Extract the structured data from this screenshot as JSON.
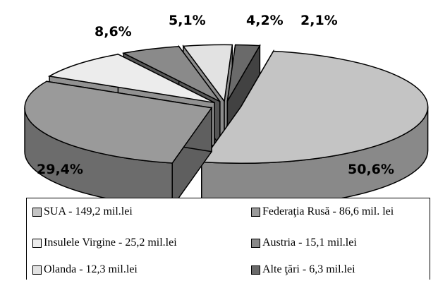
{
  "chart_data": {
    "type": "pie",
    "title": "",
    "slices": [
      {
        "label": "SUA - 149,2 mil.lei",
        "value": 50.6,
        "value_label": "50,6%",
        "color": "#c4c4c4"
      },
      {
        "label": "Federaţia Rusă - 86,6 mil. lei",
        "value": 29.4,
        "value_label": "29,4%",
        "color": "#9a9a9a"
      },
      {
        "label": "Insulele Virgine - 25,2 mil.lei",
        "value": 8.6,
        "value_label": "8,6%",
        "color": "#ececec"
      },
      {
        "label": "Austria - 15,1 mil.lei",
        "value": 5.1,
        "value_label": "5,1%",
        "color": "#8a8a8a"
      },
      {
        "label": "Olanda - 12,3 mil.lei",
        "value": 4.2,
        "value_label": "4,2%",
        "color": "#e2e2e2"
      },
      {
        "label": "Alte ţări - 6,3 mil.lei",
        "value": 2.1,
        "value_label": "2,1%",
        "color": "#6a6a6a"
      }
    ],
    "legend_position": "bottom",
    "exploded": true,
    "style": "3d"
  }
}
